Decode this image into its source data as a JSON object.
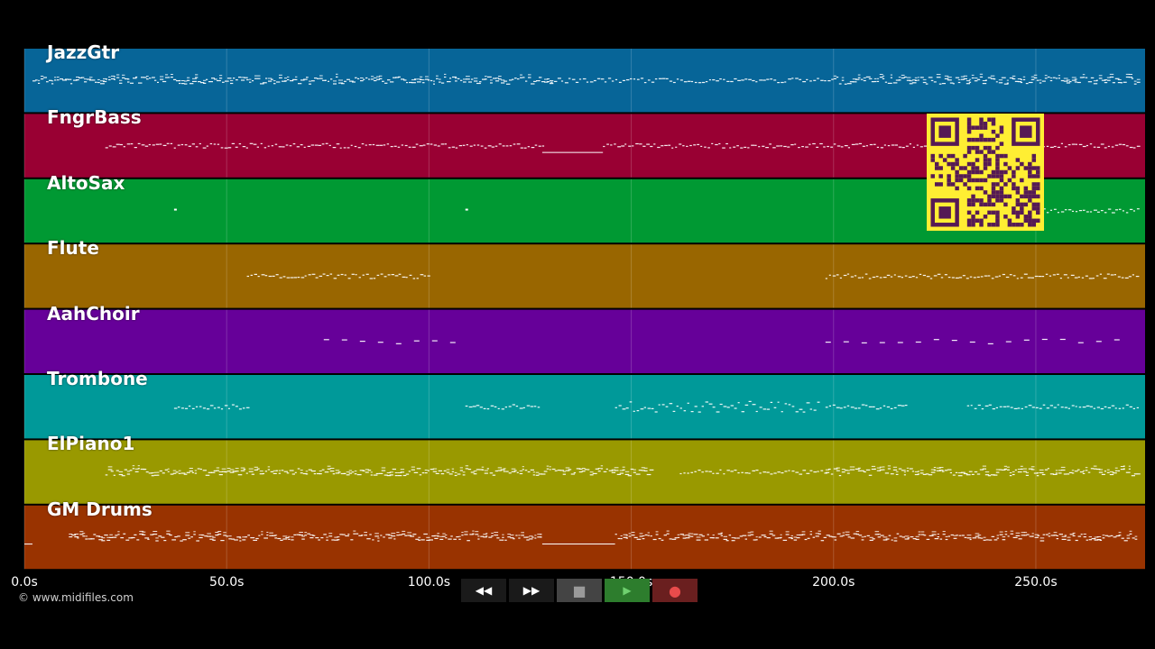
{
  "tracks": [
    {
      "name": "JazzGtr",
      "color": "#076598",
      "density": "dense",
      "segments": [
        [
          2,
          130,
          "dense"
        ],
        [
          130,
          170,
          "sparse"
        ],
        [
          170,
          200,
          "sparse"
        ],
        [
          200,
          275,
          "dense"
        ]
      ]
    },
    {
      "name": "FngrBass",
      "color": "#990033",
      "segments": [
        [
          20,
          128,
          "line"
        ],
        [
          128,
          143,
          "flat"
        ],
        [
          143,
          200,
          "line"
        ],
        [
          200,
          275,
          "line"
        ]
      ]
    },
    {
      "name": "AltoSax",
      "color": "#009933",
      "segments": [
        [
          37,
          38,
          "dot"
        ],
        [
          109,
          110,
          "dot"
        ],
        [
          250,
          275,
          "line"
        ]
      ]
    },
    {
      "name": "Flute",
      "color": "#996600",
      "segments": [
        [
          55,
          100,
          "line"
        ],
        [
          198,
          275,
          "line"
        ]
      ]
    },
    {
      "name": "AahChoir",
      "color": "#660099",
      "segments": [
        [
          74,
          107,
          "dash"
        ],
        [
          198,
          270,
          "dash"
        ]
      ]
    },
    {
      "name": "Trombone",
      "color": "#009999",
      "segments": [
        [
          37,
          55,
          "line"
        ],
        [
          109,
          127,
          "line"
        ],
        [
          146,
          196,
          "wave"
        ],
        [
          198,
          218,
          "line"
        ],
        [
          233,
          275,
          "line"
        ]
      ]
    },
    {
      "name": "ElPiano1",
      "color": "#999900",
      "segments": [
        [
          20,
          155,
          "dense"
        ],
        [
          162,
          198,
          "sparse"
        ],
        [
          198,
          275,
          "dense"
        ]
      ]
    },
    {
      "name": "GM Drums",
      "color": "#993300",
      "segments": [
        [
          0,
          2,
          "flat"
        ],
        [
          11,
          128,
          "dense"
        ],
        [
          128,
          146,
          "flat"
        ],
        [
          146,
          275,
          "dense"
        ]
      ]
    }
  ],
  "timeline": {
    "max_seconds": 277,
    "ticks": [
      "0.0s",
      "50.0s",
      "100.0s",
      "150.0s",
      "200.0s",
      "250.0s"
    ],
    "tick_values": [
      0,
      50,
      100,
      150,
      200,
      250
    ]
  },
  "controls": [
    {
      "name": "rewind-button",
      "glyph": "◀◀",
      "bg": "#1a1a1a"
    },
    {
      "name": "fast-forward-button",
      "glyph": "▶▶",
      "bg": "#1a1a1a"
    },
    {
      "name": "stop-button",
      "glyph": "■",
      "bg": "#444444"
    },
    {
      "name": "play-button",
      "glyph": "▶",
      "bg": "#2d7d2d"
    },
    {
      "name": "record-button",
      "glyph": "●",
      "bg": "#6a1f1f"
    }
  ],
  "copyright": "© www.midifiles.com",
  "qr": {
    "bg": "#ffee33",
    "fg": "#551a55"
  }
}
